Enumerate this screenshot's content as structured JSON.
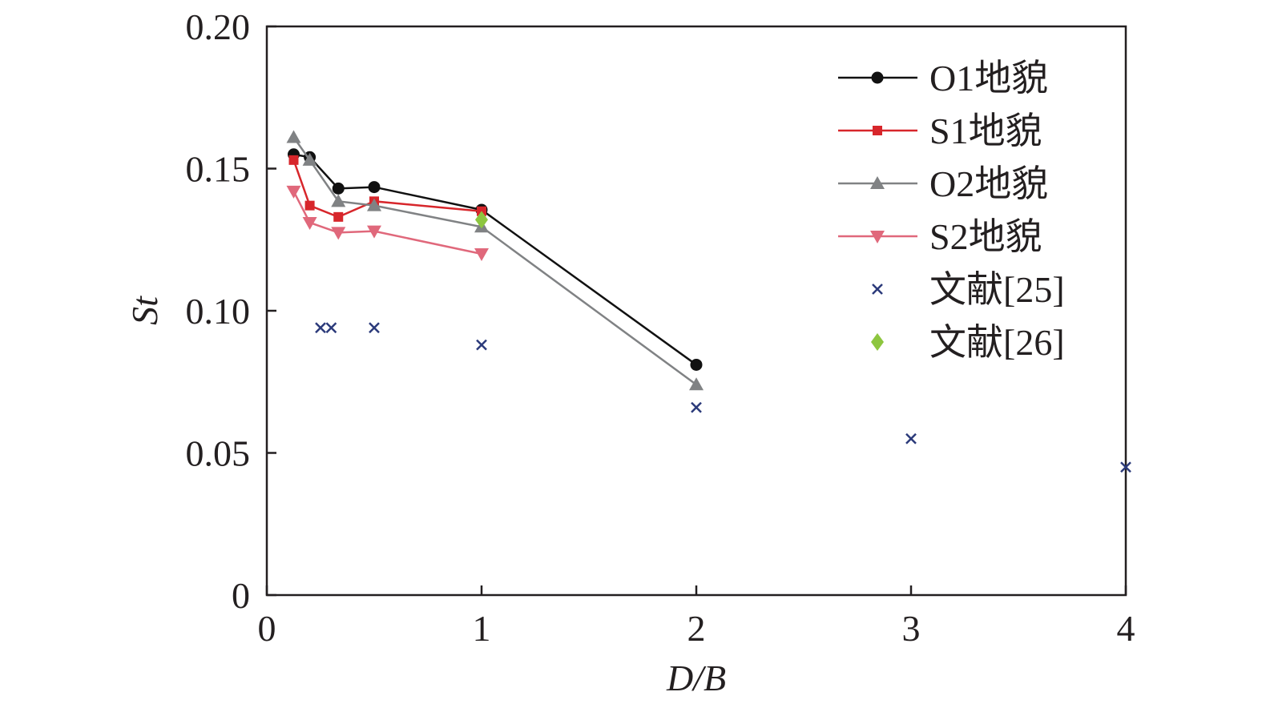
{
  "chart_data": {
    "type": "line",
    "title": "",
    "xlabel": "D/B",
    "ylabel": "St",
    "xlim": [
      0,
      4
    ],
    "ylim": [
      0,
      0.2
    ],
    "xticks": [
      0,
      1,
      2,
      3,
      4
    ],
    "xtick_labels": [
      "0",
      "1",
      "2",
      "3",
      "4"
    ],
    "yticks": [
      0,
      0.05,
      0.1,
      0.15,
      0.2
    ],
    "ytick_labels": [
      "0",
      "0.05",
      "0.10",
      "0.15",
      "0.20"
    ],
    "grid": false,
    "legend_position": "top-right",
    "series": [
      {
        "name": "O1地貌",
        "color": "#111111",
        "marker": "circle",
        "line": true,
        "points": [
          [
            0.125,
            0.155
          ],
          [
            0.2,
            0.154
          ],
          [
            0.333,
            0.143
          ],
          [
            0.5,
            0.1435
          ],
          [
            1,
            0.1355
          ],
          [
            2,
            0.081
          ]
        ]
      },
      {
        "name": "S1地貌",
        "color": "#d7262b",
        "marker": "square",
        "line": true,
        "points": [
          [
            0.125,
            0.153
          ],
          [
            0.2,
            0.137
          ],
          [
            0.333,
            0.133
          ],
          [
            0.5,
            0.1385
          ],
          [
            1,
            0.135
          ]
        ]
      },
      {
        "name": "O2地貌",
        "color": "#808284",
        "marker": "triangle-up",
        "line": true,
        "points": [
          [
            0.125,
            0.161
          ],
          [
            0.2,
            0.153
          ],
          [
            0.333,
            0.1385
          ],
          [
            0.5,
            0.137
          ],
          [
            1,
            0.1295
          ],
          [
            2,
            0.074
          ]
        ]
      },
      {
        "name": "S2地貌",
        "color": "#e0687b",
        "marker": "triangle-down",
        "line": true,
        "points": [
          [
            0.125,
            0.142
          ],
          [
            0.2,
            0.131
          ],
          [
            0.333,
            0.1275
          ],
          [
            0.5,
            0.128
          ],
          [
            1,
            0.12
          ]
        ]
      },
      {
        "name": "文献[25]",
        "color": "#2b3a7a",
        "marker": "x",
        "line": false,
        "points": [
          [
            0.25,
            0.094
          ],
          [
            0.3,
            0.094
          ],
          [
            0.5,
            0.094
          ],
          [
            1,
            0.088
          ],
          [
            2,
            0.066
          ],
          [
            3,
            0.055
          ],
          [
            4,
            0.045
          ]
        ]
      },
      {
        "name": "文献[26]",
        "color": "#8dc63f",
        "marker": "diamond",
        "line": false,
        "points": [
          [
            1,
            0.132
          ]
        ]
      }
    ]
  }
}
